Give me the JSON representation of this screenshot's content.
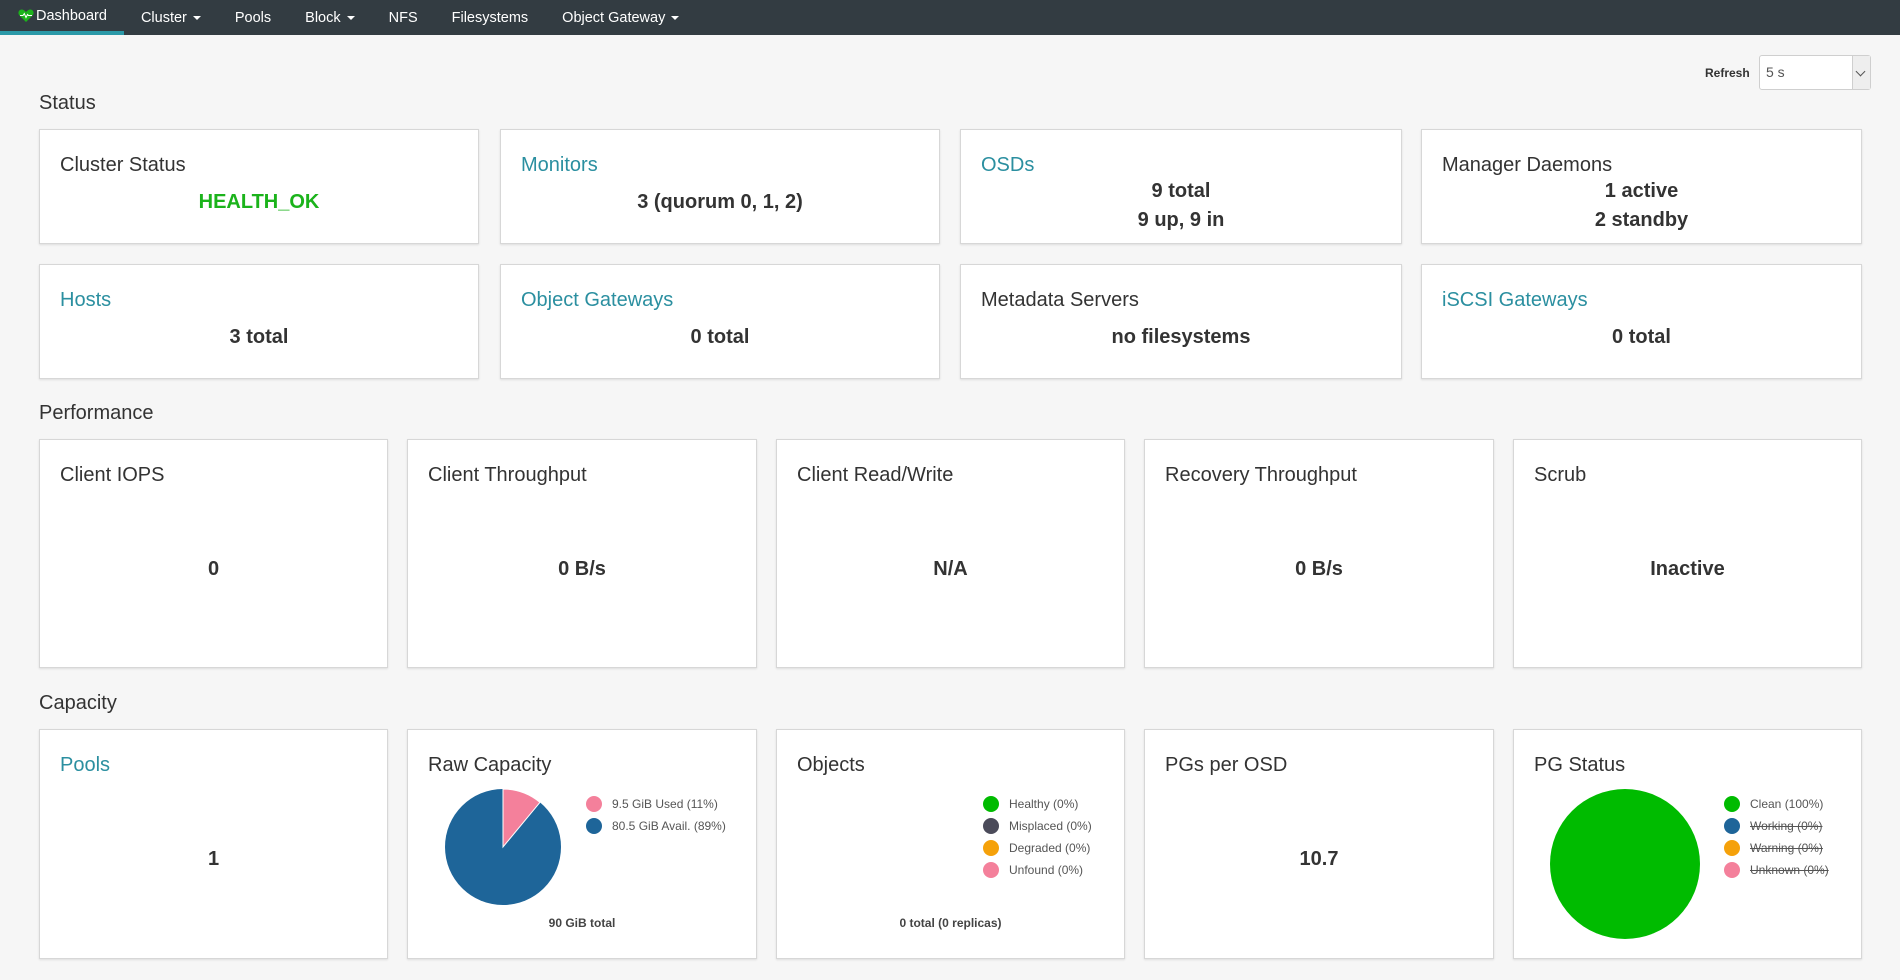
{
  "nav": {
    "items": [
      {
        "label": "Dashboard"
      },
      {
        "label": "Cluster"
      },
      {
        "label": "Pools"
      },
      {
        "label": "Block"
      },
      {
        "label": "NFS"
      },
      {
        "label": "Filesystems"
      },
      {
        "label": "Object Gateway"
      }
    ]
  },
  "refresh": {
    "label": "Refresh",
    "value": "5 s"
  },
  "sections": {
    "status": "Status",
    "performance": "Performance",
    "capacity": "Capacity"
  },
  "status": {
    "cluster_status": {
      "title": "Cluster Status",
      "value": "HEALTH_OK"
    },
    "monitors": {
      "title": "Monitors",
      "value": "3 (quorum 0, 1, 2)"
    },
    "osds": {
      "title": "OSDs",
      "line1": "9 total",
      "line2": "9 up, 9 in"
    },
    "manager_daemons": {
      "title": "Manager Daemons",
      "line1": "1 active",
      "line2": "2 standby"
    },
    "hosts": {
      "title": "Hosts",
      "value": "3 total"
    },
    "object_gateways": {
      "title": "Object Gateways",
      "value": "0 total"
    },
    "metadata_servers": {
      "title": "Metadata Servers",
      "value": "no filesystems"
    },
    "iscsi_gateways": {
      "title": "iSCSI Gateways",
      "value": "0 total"
    }
  },
  "performance": {
    "client_iops": {
      "title": "Client IOPS",
      "value": "0"
    },
    "client_throughput": {
      "title": "Client Throughput",
      "value": "0 B/s"
    },
    "client_read_write": {
      "title": "Client Read/Write",
      "value": "N/A"
    },
    "recovery_throughput": {
      "title": "Recovery Throughput",
      "value": "0 B/s"
    },
    "scrub": {
      "title": "Scrub",
      "value": "Inactive"
    }
  },
  "capacity": {
    "pools": {
      "title": "Pools",
      "value": "1"
    },
    "raw_capacity": {
      "title": "Raw Capacity",
      "legend": [
        {
          "label": "9.5 GiB Used (11%)",
          "color": "#f4809b"
        },
        {
          "label": "80.5 GiB Avail. (89%)",
          "color": "#1e6599"
        }
      ],
      "total": "90 GiB total",
      "used_fraction": 0.11
    },
    "objects": {
      "title": "Objects",
      "legend": [
        {
          "label": "Healthy (0%)",
          "color": "#00bb00"
        },
        {
          "label": "Misplaced (0%)",
          "color": "#4b4b5a"
        },
        {
          "label": "Degraded (0%)",
          "color": "#f5a10a"
        },
        {
          "label": "Unfound (0%)",
          "color": "#f4809b"
        }
      ],
      "total": "0 total (0 replicas)"
    },
    "pgs_per_osd": {
      "title": "PGs per OSD",
      "value": "10.7"
    },
    "pg_status": {
      "title": "PG Status",
      "legend": [
        {
          "label": "Clean (100%)",
          "color": "#00bb00",
          "struck": false
        },
        {
          "label": "Working (0%)",
          "color": "#1e6599",
          "struck": true
        },
        {
          "label": "Warning (0%)",
          "color": "#f5a10a",
          "struck": true
        },
        {
          "label": "Unknown (0%)",
          "color": "#f4809b",
          "struck": true
        }
      ],
      "clean_fraction": 1.0
    }
  },
  "colors": {
    "nav_bg": "#333c42",
    "accent": "#2b99a8",
    "link": "#2b8fa0",
    "health_ok": "#1bb31b"
  }
}
